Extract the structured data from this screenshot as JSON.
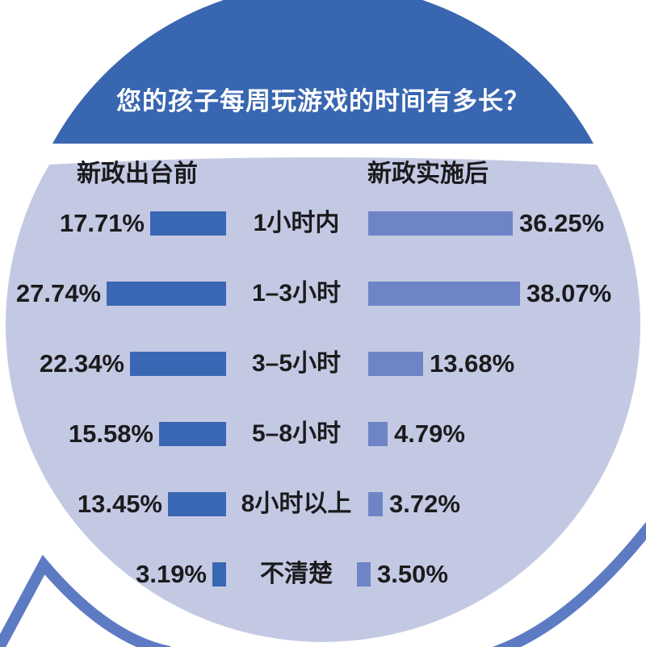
{
  "chart_data": {
    "type": "bar",
    "orientation": "horizontal, mirrored back-to-back with center category labels",
    "title": "您的孩子每周玩游戏的时间有多长？",
    "categories": [
      "1小时内",
      "1–3小时",
      "3–5小时",
      "5–8小时",
      "8小时以上",
      "不清楚"
    ],
    "series": [
      {
        "name": "新政出台前",
        "side": "left",
        "values": [
          17.71,
          27.74,
          22.34,
          15.58,
          13.45,
          3.19
        ],
        "labels": [
          "17.71%",
          "27.74%",
          "22.34%",
          "15.58%",
          "13.45%",
          "3.19%"
        ]
      },
      {
        "name": "新政实施后",
        "side": "right",
        "values": [
          36.25,
          38.07,
          13.68,
          4.79,
          3.72,
          3.5
        ],
        "labels": [
          "36.25%",
          "38.07%",
          "13.68%",
          "4.79%",
          "3.72%",
          "3.50%"
        ]
      }
    ],
    "value_suffix": "%",
    "legend_position": "column headers above each bar group",
    "grid": false,
    "xlim": [
      0,
      40
    ]
  },
  "columns": {
    "before": "新政出台前",
    "after": "新政实施后"
  },
  "colors": {
    "dome_blue": "#3866b1",
    "bar_left": "#3a67b3",
    "bar_right": "#6e84c7",
    "panel_lavender": "#c4c9e3",
    "decor_line": "#5d7bc3",
    "title_text": "#ffffff",
    "label_text": "#1b1b1d",
    "background": "#ffffff"
  }
}
